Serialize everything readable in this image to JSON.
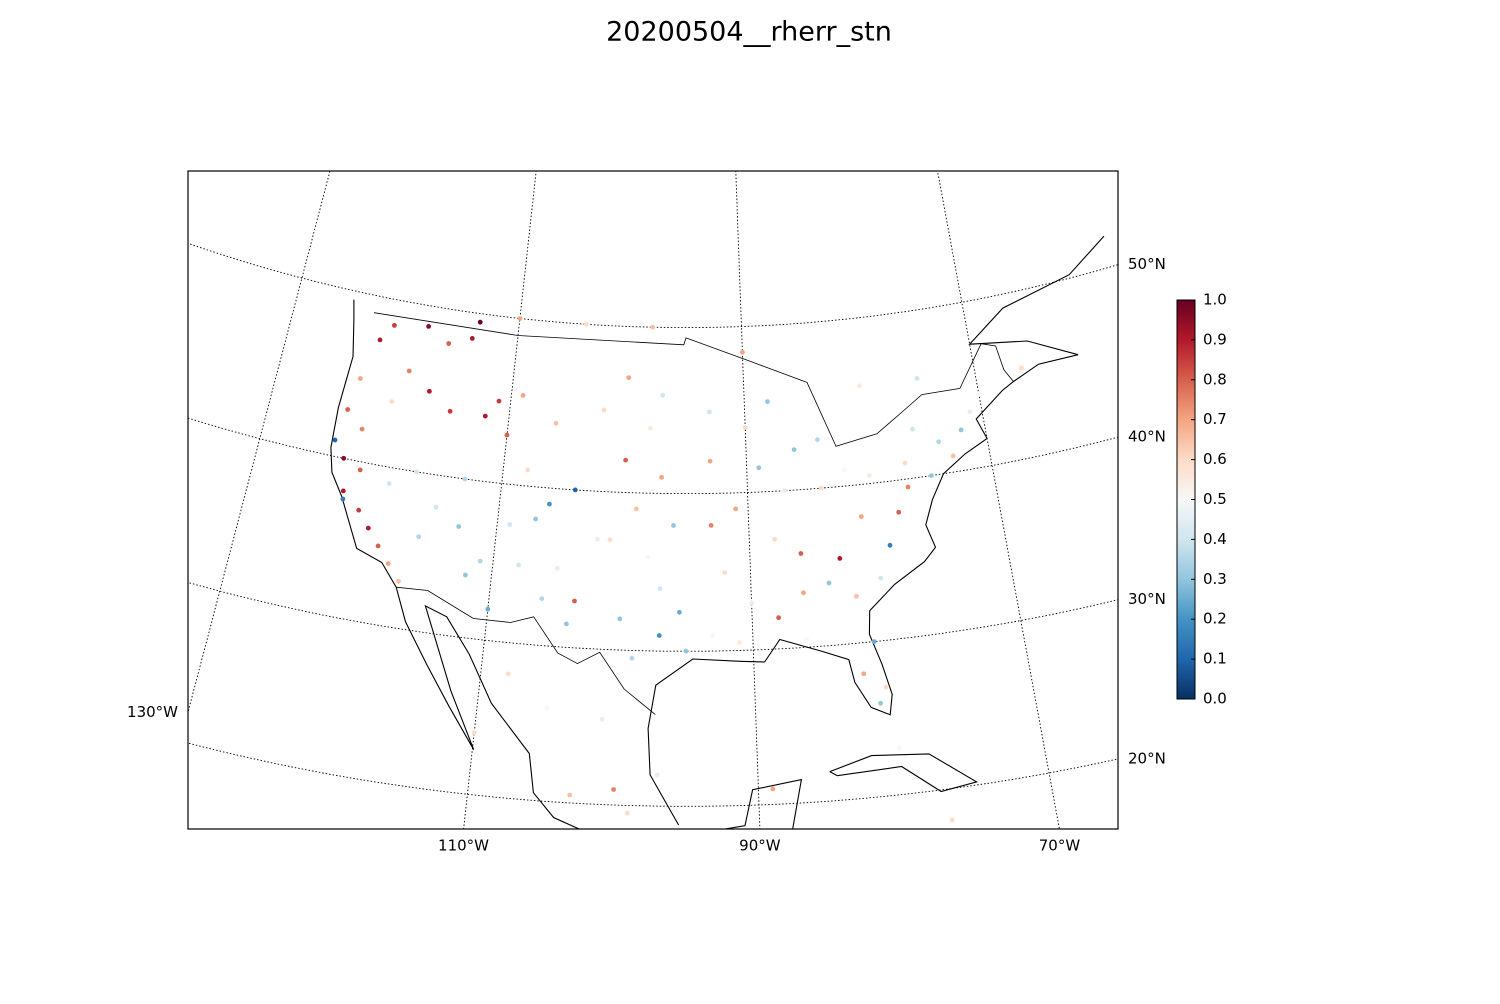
{
  "chart_data": {
    "type": "map-scatter",
    "title": "20200504__rherr_stn",
    "projection": "lambert-conformal",
    "graticule": "dotted",
    "parallels": [
      {
        "value": 20,
        "label": "20°N"
      },
      {
        "value": 30,
        "label": "30°N"
      },
      {
        "value": 40,
        "label": "40°N"
      },
      {
        "value": 50,
        "label": "50°N"
      }
    ],
    "meridians": [
      {
        "value": -130,
        "label": "130°W"
      },
      {
        "value": -110,
        "label": "110°W"
      },
      {
        "value": -90,
        "label": "90°W"
      },
      {
        "value": -70,
        "label": "70°W"
      }
    ],
    "colorbar": {
      "clim": [
        0,
        1
      ],
      "colors": [
        "#053061",
        "#2166ac",
        "#4393c3",
        "#92c5de",
        "#d1e5f0",
        "#f7f7f7",
        "#fddbc7",
        "#f4a582",
        "#d6604d",
        "#b2182b",
        "#67001f"
      ],
      "ticks": [
        {
          "value": 0,
          "label": "0.0"
        },
        0.1,
        0.2,
        0.3,
        0.4,
        0.5,
        0.6,
        0.7,
        0.8,
        0.9,
        {
          "value": 1,
          "label": "1.0"
        }
      ]
    },
    "stations": {
      "lon": [
        -122,
        -121,
        -118,
        -116,
        -114,
        -113.5,
        -119,
        -117,
        -115,
        -123,
        -123.5,
        -122,
        -120,
        -111,
        -112,
        -110,
        -109,
        -106,
        -108,
        -122.5,
        -121,
        -120,
        -119,
        -118,
        -117,
        -123,
        -121.5,
        -124,
        -122.4,
        -116,
        -115,
        -113,
        -112,
        -110,
        -111,
        -108,
        -106,
        -104,
        -105,
        -109,
        -106,
        -107,
        -104,
        -113,
        -117,
        -119,
        -100,
        -97,
        -102,
        -98,
        -100,
        -97,
        -99,
        -96,
        -101,
        -98,
        -97,
        -100,
        -97,
        -99,
        -95,
        -95.5,
        -103.5,
        -102,
        -93,
        -90,
        -93,
        -89,
        -91,
        -93,
        -87,
        -86,
        -84,
        -84,
        -82,
        -88,
        -92,
        -90,
        -88,
        -86,
        -84,
        -83,
        -82,
        -80,
        -81,
        -82,
        -81,
        -80.5,
        -86,
        -91,
        -93,
        -86,
        -88,
        -79,
        -78,
        -77,
        -75,
        -77,
        -74,
        -76,
        -72,
        -71,
        -70,
        -73,
        -80,
        -81,
        -104,
        -98,
        -90,
        -80,
        -75,
        -66,
        -110,
        -108,
        -105,
        -101,
        -100,
        -103,
        -99,
        -97,
        -89,
        -110,
        -77,
        -80
      ],
      "lat": [
        47.5,
        48.5,
        48.8,
        48,
        48.5,
        49.5,
        46,
        45,
        44,
        45,
        43,
        42,
        44,
        45,
        44,
        43,
        45.5,
        44,
        41,
        38,
        37,
        36,
        35,
        34,
        33,
        40,
        39.5,
        41,
        37.5,
        36,
        38,
        37,
        34,
        32,
        35,
        35,
        33,
        31.5,
        35,
        37.5,
        39,
        38,
        40,
        40,
        40,
        39,
        47,
        46,
        45,
        44,
        42,
        41,
        39,
        38,
        37,
        36,
        34,
        32,
        31,
        29.5,
        30,
        32.5,
        33,
        37,
        45,
        44,
        42,
        41.5,
        39,
        38,
        40,
        42.5,
        43,
        40,
        41,
        45.5,
        35,
        33,
        32,
        33.5,
        34,
        35.5,
        33,
        34,
        30,
        28,
        26,
        27,
        30.5,
        30.5,
        31,
        36,
        37,
        36,
        38,
        39.5,
        40,
        41,
        42,
        43,
        42.5,
        43.5,
        44.5,
        41,
        40.5,
        38,
        50,
        50,
        48.5,
        46,
        46,
        45.5,
        50,
        28,
        26,
        25.5,
        21,
        20.5,
        19.5,
        22,
        21,
        24,
        18,
        23
      ],
      "values": [
        0.9,
        0.85,
        0.95,
        0.8,
        0.9,
        1.0,
        0.75,
        0.9,
        0.85,
        0.7,
        0.8,
        0.75,
        0.6,
        0.85,
        0.9,
        0.8,
        0.7,
        0.65,
        0.6,
        0.9,
        0.85,
        0.9,
        0.8,
        0.7,
        0.65,
        0.95,
        0.8,
        0.1,
        0.15,
        0.35,
        0.4,
        0.3,
        0.3,
        0.25,
        0.35,
        0.4,
        0.35,
        0.3,
        0.45,
        0.4,
        0.2,
        0.3,
        0.1,
        0.35,
        0.4,
        0.4,
        0.7,
        0.4,
        0.6,
        0.55,
        0.8,
        0.7,
        0.65,
        0.3,
        0.6,
        0.5,
        0.4,
        0.3,
        0.2,
        0.35,
        0.3,
        0.25,
        0.8,
        0.45,
        0.4,
        0.6,
        0.7,
        0.3,
        0.7,
        0.75,
        0.45,
        0.3,
        0.35,
        0.6,
        0.5,
        0.3,
        0.6,
        0.55,
        0.8,
        0.7,
        0.3,
        0.9,
        0.65,
        0.4,
        0.25,
        0.7,
        0.3,
        0.6,
        0.5,
        0.55,
        0.5,
        0.8,
        0.6,
        0.15,
        0.8,
        0.75,
        0.3,
        0.6,
        0.35,
        0.4,
        0.3,
        0.45,
        0.5,
        0.65,
        0.55,
        0.7,
        0.6,
        0.65,
        0.7,
        0.55,
        0.4,
        0.6,
        0.7,
        0.6,
        0.5,
        0.55,
        0.75,
        0.65,
        0.6,
        0.45,
        0.7,
        0.6,
        0.6,
        0.5
      ]
    }
  }
}
